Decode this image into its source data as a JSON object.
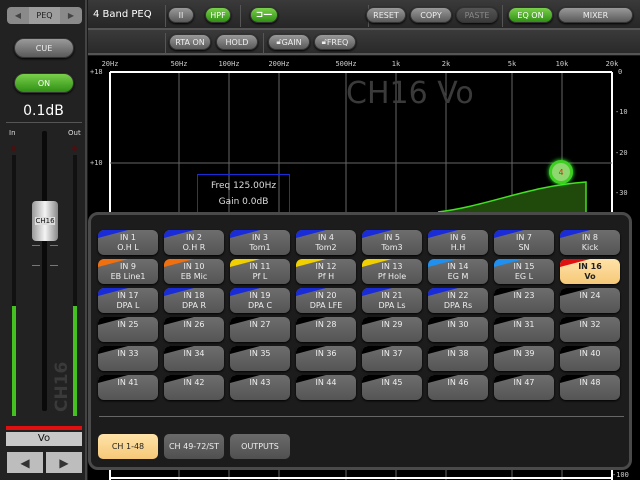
{
  "left": {
    "page_label": "PEQ",
    "cue": "CUE",
    "on": "ON",
    "level": "0.1dB",
    "in_label": "In",
    "out_label": "Out",
    "fader_label": "CH16",
    "channel_vertical": "CH16",
    "channel_name": "Vo",
    "fader_position": 0.68,
    "meter_in": 0.42,
    "meter_out": 0.42
  },
  "topbar": {
    "title": "4 Band PEQ",
    "buttons": {
      "type2": "II",
      "hpf": "HPF",
      "reset": "RESET",
      "copy": "COPY",
      "paste": "PASTE",
      "eq_on": "EQ ON",
      "mixer": "MIXER"
    }
  },
  "bar2": {
    "rta_on": "RTA ON",
    "hold": "HOLD",
    "gain": "GAIN",
    "freq": "FREQ"
  },
  "graph": {
    "watermark": "CH16 Vo",
    "freq_ticks": [
      "20Hz",
      "50Hz",
      "100Hz",
      "200Hz",
      "500Hz",
      "1k",
      "2k",
      "5k",
      "10k",
      "20k"
    ],
    "gain_ticks": [
      "+18",
      "+10"
    ],
    "rta_ticks": [
      "0",
      "-10",
      "-20",
      "-30",
      "-100"
    ],
    "info_freq": "Freq  125.00Hz",
    "info_gain": "Gain 0.0dB",
    "band_marker": "4"
  },
  "colors": {
    "accent_green": "#3fa61c",
    "selected": "#f5c878",
    "blue": "#1a2bd8",
    "orange": "#f07010",
    "yellow": "#f0d000",
    "lightblue": "#2090f0",
    "red": "#e01010"
  },
  "channels": [
    {
      "id": "IN 1",
      "name": "O.H L",
      "color": "#1a2bd8"
    },
    {
      "id": "IN 2",
      "name": "O.H R",
      "color": "#1a2bd8"
    },
    {
      "id": "IN 3",
      "name": "Tom1",
      "color": "#1a2bd8"
    },
    {
      "id": "IN 4",
      "name": "Tom2",
      "color": "#1a2bd8"
    },
    {
      "id": "IN 5",
      "name": "Tom3",
      "color": "#1a2bd8"
    },
    {
      "id": "IN 6",
      "name": "H.H",
      "color": "#1a2bd8"
    },
    {
      "id": "IN 7",
      "name": "SN",
      "color": "#1a2bd8"
    },
    {
      "id": "IN 8",
      "name": "Kick",
      "color": "#1a2bd8"
    },
    {
      "id": "IN 9",
      "name": "EB Line1",
      "color": "#f07010"
    },
    {
      "id": "IN 10",
      "name": "EB Mic",
      "color": "#f07010"
    },
    {
      "id": "IN 11",
      "name": "Pf L",
      "color": "#f0d000"
    },
    {
      "id": "IN 12",
      "name": "Pf H",
      "color": "#f0d000"
    },
    {
      "id": "IN 13",
      "name": "Pf Hole",
      "color": "#f0d000"
    },
    {
      "id": "IN 14",
      "name": "EG M",
      "color": "#2090f0"
    },
    {
      "id": "IN 15",
      "name": "EG L",
      "color": "#2090f0"
    },
    {
      "id": "IN 16",
      "name": "Vo",
      "color": "#e01010",
      "selected": true
    },
    {
      "id": "IN 17",
      "name": "DPA L",
      "color": "#1a2bd8"
    },
    {
      "id": "IN 18",
      "name": "DPA R",
      "color": "#1a2bd8"
    },
    {
      "id": "IN 19",
      "name": "DPA C",
      "color": "#1a2bd8"
    },
    {
      "id": "IN 20",
      "name": "DPA LFE",
      "color": "#1a2bd8"
    },
    {
      "id": "IN 21",
      "name": "DPA Ls",
      "color": "#1a2bd8"
    },
    {
      "id": "IN 22",
      "name": "DPA Rs",
      "color": "#1a2bd8"
    },
    {
      "id": "IN 23",
      "name": "",
      "color": "#000000"
    },
    {
      "id": "IN 24",
      "name": "",
      "color": "#000000"
    },
    {
      "id": "IN 25",
      "name": ""
    },
    {
      "id": "IN 26",
      "name": ""
    },
    {
      "id": "IN 27",
      "name": ""
    },
    {
      "id": "IN 28",
      "name": ""
    },
    {
      "id": "IN 29",
      "name": ""
    },
    {
      "id": "IN 30",
      "name": ""
    },
    {
      "id": "IN 31",
      "name": ""
    },
    {
      "id": "IN 32",
      "name": ""
    },
    {
      "id": "IN 33",
      "name": ""
    },
    {
      "id": "IN 34",
      "name": ""
    },
    {
      "id": "IN 35",
      "name": ""
    },
    {
      "id": "IN 36",
      "name": ""
    },
    {
      "id": "IN 37",
      "name": ""
    },
    {
      "id": "IN 38",
      "name": ""
    },
    {
      "id": "IN 39",
      "name": ""
    },
    {
      "id": "IN 40",
      "name": ""
    },
    {
      "id": "IN 41",
      "name": ""
    },
    {
      "id": "IN 42",
      "name": ""
    },
    {
      "id": "IN 43",
      "name": ""
    },
    {
      "id": "IN 44",
      "name": ""
    },
    {
      "id": "IN 45",
      "name": ""
    },
    {
      "id": "IN 46",
      "name": ""
    },
    {
      "id": "IN 47",
      "name": ""
    },
    {
      "id": "IN 48",
      "name": ""
    }
  ],
  "tabs": [
    {
      "label": "CH 1-48",
      "selected": true
    },
    {
      "label": "CH 49-72/ST"
    },
    {
      "label": "OUTPUTS"
    }
  ]
}
